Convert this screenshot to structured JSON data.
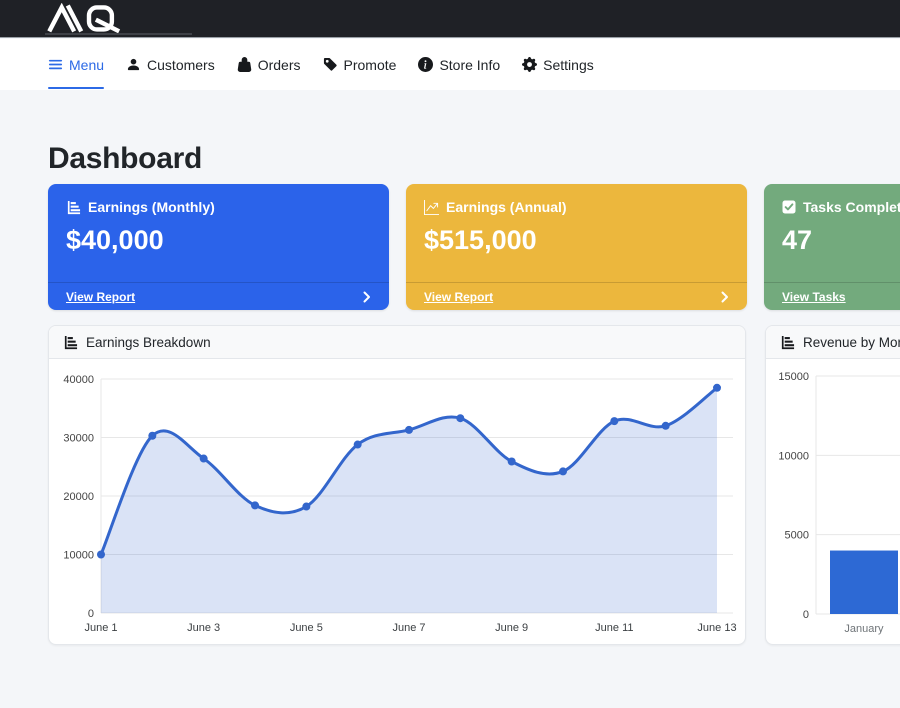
{
  "topbar": {
    "logo": "AQ"
  },
  "nav": {
    "items": [
      {
        "label": "Menu",
        "icon": "hamburger-icon",
        "active": true
      },
      {
        "label": "Customers",
        "icon": "person-icon",
        "active": false
      },
      {
        "label": "Orders",
        "icon": "bag-icon",
        "active": false
      },
      {
        "label": "Promote",
        "icon": "tag-icon",
        "active": false
      },
      {
        "label": "Store Info",
        "icon": "info-circle-icon",
        "active": false
      },
      {
        "label": "Settings",
        "icon": "gear-icon",
        "active": false
      }
    ]
  },
  "page": {
    "title": "Dashboard"
  },
  "summary_cards": [
    {
      "title": "Earnings (Monthly)",
      "value": "$40,000",
      "link": "View Report",
      "icon": "bar-chart-icon",
      "color": "#2b63ea"
    },
    {
      "title": "Earnings (Annual)",
      "value": "$515,000",
      "link": "View Report",
      "icon": "line-chart-icon",
      "color": "#ecb73d"
    },
    {
      "title": "Tasks Completed",
      "value": "47",
      "link": "View Tasks",
      "icon": "check-square-icon",
      "color": "#73aa7d"
    }
  ],
  "chart_cards": [
    {
      "title": "Earnings Breakdown",
      "icon": "bar-chart-icon"
    },
    {
      "title": "Revenue by Month",
      "icon": "bar-chart-icon"
    }
  ],
  "chart_data": [
    {
      "type": "line",
      "title": "Earnings Breakdown",
      "x": [
        "June 1",
        "June 2",
        "June 3",
        "June 4",
        "June 5",
        "June 6",
        "June 7",
        "June 8",
        "June 9",
        "June 10",
        "June 11",
        "June 12",
        "June 13"
      ],
      "values": [
        10000,
        30300,
        26400,
        18400,
        18200,
        28800,
        31300,
        33300,
        25900,
        24200,
        32800,
        32000,
        38500
      ],
      "ylim": [
        0,
        40000
      ],
      "yticks": [
        0,
        10000,
        20000,
        30000,
        40000
      ],
      "xtick_every": 2,
      "line_color": "#3366cc",
      "fill_color": "rgba(51,102,204,0.18)",
      "point_color": "#3366cc",
      "grid_color": "#e7e7e7",
      "tick_color": "#444444",
      "grid": true,
      "legend": false
    },
    {
      "type": "bar",
      "title": "Revenue by Month",
      "categories": [
        "January"
      ],
      "values": [
        4000
      ],
      "ylim": [
        0,
        15000
      ],
      "yticks": [
        0,
        5000,
        10000,
        15000
      ],
      "bar_color": "#2d69d4",
      "grid_color": "#e7e7e7",
      "tick_color": "#444444",
      "xlabel_color": "#6f7478",
      "grid": true,
      "legend": false
    }
  ]
}
